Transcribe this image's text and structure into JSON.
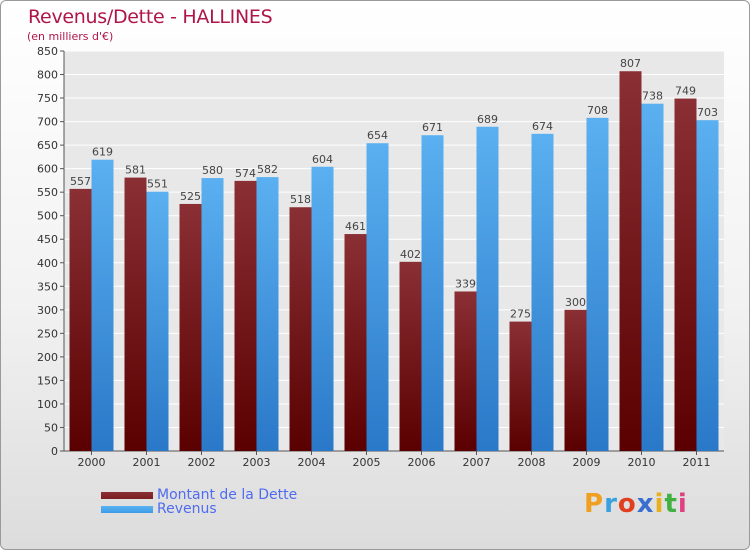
{
  "chart_data": {
    "type": "bar",
    "title": "Revenus/Dette - HALLINES",
    "subtitle": "(en milliers d'€)",
    "categories": [
      "2000",
      "2001",
      "2002",
      "2003",
      "2004",
      "2005",
      "2006",
      "2007",
      "2008",
      "2009",
      "2010",
      "2011"
    ],
    "series": [
      {
        "name": "Montant de la Dette",
        "color": "#7a1e22",
        "values": [
          557,
          581,
          525,
          574,
          518,
          461,
          402,
          339,
          275,
          300,
          807,
          749
        ]
      },
      {
        "name": "Revenus",
        "color": "#3d9be8",
        "values": [
          619,
          551,
          580,
          582,
          604,
          654,
          671,
          689,
          674,
          708,
          738,
          703
        ]
      }
    ],
    "ylim": [
      0,
      850
    ],
    "yticks": [
      0,
      50,
      100,
      150,
      200,
      250,
      300,
      350,
      400,
      450,
      500,
      550,
      600,
      650,
      700,
      750,
      800,
      850
    ],
    "grid": true
  },
  "legend": {
    "debt_label": "Montant de la Dette",
    "revenue_label": "Revenus"
  },
  "brand": {
    "letters": [
      "P",
      "r",
      "o",
      "x",
      "i",
      "t",
      "i"
    ],
    "colors": [
      "#f0a020",
      "#3aa0e0",
      "#e04020",
      "#3a6fd0",
      "#e8b020",
      "#40b040",
      "#e04080"
    ]
  }
}
